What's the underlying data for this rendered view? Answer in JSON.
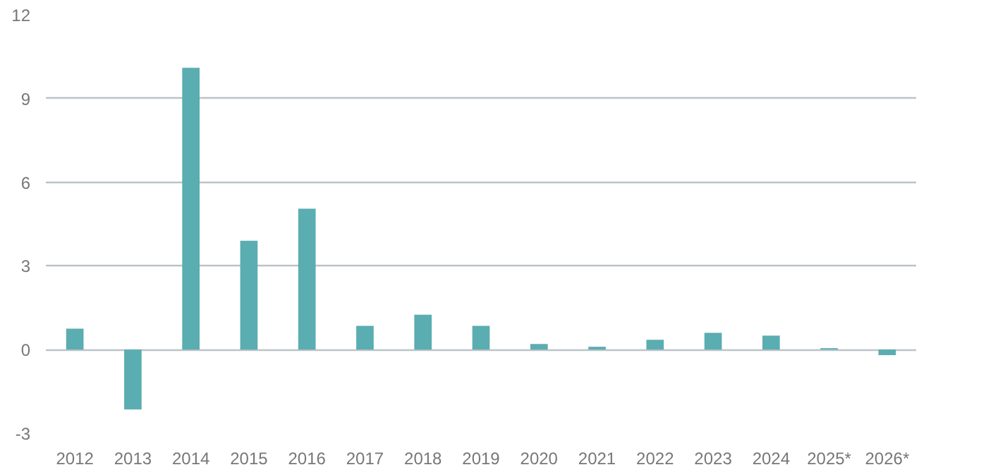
{
  "chart_data": {
    "type": "bar",
    "categories": [
      "2012",
      "2013",
      "2014",
      "2015",
      "2016",
      "2017",
      "2018",
      "2019",
      "2020",
      "2021",
      "2022",
      "2023",
      "2024",
      "2025*",
      "2026*"
    ],
    "values": [
      0.75,
      -2.15,
      10.1,
      3.9,
      5.05,
      0.85,
      1.25,
      0.85,
      0.2,
      0.1,
      0.35,
      0.6,
      0.5,
      0.05,
      -0.2
    ],
    "color": "#5aadb0",
    "ylim": [
      -3,
      12
    ],
    "yticks": [
      -3,
      0,
      3,
      6,
      9,
      12
    ],
    "grid": "y"
  }
}
